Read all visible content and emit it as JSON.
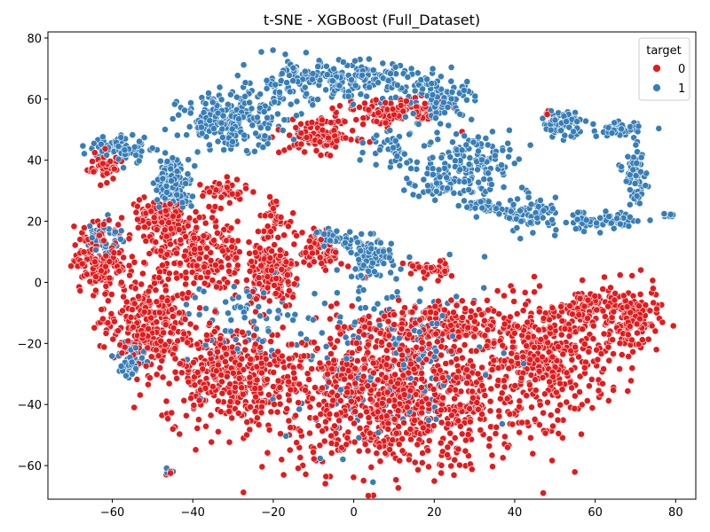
{
  "chart_data": {
    "type": "scatter",
    "title": "t-SNE - XGBoost (Full_Dataset)",
    "xlabel": "",
    "ylabel": "",
    "xlim": [
      -76,
      85
    ],
    "ylim": [
      -71,
      82
    ],
    "x_ticks": [
      -60,
      -40,
      -20,
      0,
      20,
      40,
      60,
      80
    ],
    "y_ticks": [
      -60,
      -40,
      -20,
      0,
      20,
      40,
      60,
      80
    ],
    "grid": false,
    "legend": {
      "title": "target",
      "placement": "top-right",
      "entries": [
        {
          "label": "0",
          "color": "#e41a1c"
        },
        {
          "label": "1",
          "color": "#377eb8"
        }
      ]
    },
    "series": [
      {
        "name": "0",
        "color": "#e41a1c",
        "clusters": [
          {
            "cx": 10,
            "cy": -38,
            "rx": 30,
            "ry": 22,
            "n": 900
          },
          {
            "cx": 48,
            "cy": -25,
            "rx": 14,
            "ry": 18,
            "n": 380
          },
          {
            "cx": 68,
            "cy": -12,
            "rx": 7,
            "ry": 10,
            "n": 160
          },
          {
            "cx": 57,
            "cy": -8,
            "rx": 6,
            "ry": 5,
            "n": 70
          },
          {
            "cx": 20,
            "cy": -14,
            "rx": 18,
            "ry": 7,
            "n": 220
          },
          {
            "cx": -30,
            "cy": -30,
            "rx": 16,
            "ry": 15,
            "n": 350
          },
          {
            "cx": -52,
            "cy": -14,
            "rx": 10,
            "ry": 14,
            "n": 260
          },
          {
            "cx": -63,
            "cy": 8,
            "rx": 6,
            "ry": 10,
            "n": 150
          },
          {
            "cx": -40,
            "cy": 10,
            "rx": 12,
            "ry": 14,
            "n": 260
          },
          {
            "cx": -20,
            "cy": 2,
            "rx": 6,
            "ry": 9,
            "n": 160
          },
          {
            "cx": -48,
            "cy": 22,
            "rx": 7,
            "ry": 5,
            "n": 100
          },
          {
            "cx": -20,
            "cy": 21,
            "rx": 3,
            "ry": 5,
            "n": 40
          },
          {
            "cx": -8,
            "cy": 48,
            "rx": 8,
            "ry": 5,
            "n": 120
          },
          {
            "cx": 10,
            "cy": 56,
            "rx": 12,
            "ry": 4,
            "n": 110
          },
          {
            "cx": -8,
            "cy": 10,
            "rx": 5,
            "ry": 6,
            "n": 70
          },
          {
            "cx": -62,
            "cy": 38,
            "rx": 4,
            "ry": 4,
            "n": 60
          },
          {
            "cx": -32,
            "cy": 30,
            "rx": 5,
            "ry": 3,
            "n": 50
          },
          {
            "cx": 18,
            "cy": 4,
            "rx": 5,
            "ry": 3,
            "n": 40
          },
          {
            "cx": -45,
            "cy": -62,
            "rx": 1.5,
            "ry": 1,
            "n": 3
          },
          {
            "cx": 48,
            "cy": 56,
            "rx": 1,
            "ry": 1,
            "n": 3
          }
        ]
      },
      {
        "name": "1",
        "color": "#377eb8",
        "clusters": [
          {
            "cx": -30,
            "cy": 53,
            "rx": 12,
            "ry": 8,
            "n": 220
          },
          {
            "cx": -45,
            "cy": 32,
            "rx": 4,
            "ry": 8,
            "n": 150
          },
          {
            "cx": -58,
            "cy": 44,
            "rx": 7,
            "ry": 4,
            "n": 80
          },
          {
            "cx": -5,
            "cy": 66,
            "rx": 22,
            "ry": 6,
            "n": 250
          },
          {
            "cx": 22,
            "cy": 60,
            "rx": 7,
            "ry": 6,
            "n": 100
          },
          {
            "cx": 30,
            "cy": 40,
            "rx": 12,
            "ry": 10,
            "n": 130
          },
          {
            "cx": 22,
            "cy": 32,
            "rx": 8,
            "ry": 4,
            "n": 60
          },
          {
            "cx": 32,
            "cy": 25,
            "rx": 4,
            "ry": 2,
            "n": 40
          },
          {
            "cx": 44,
            "cy": 22,
            "rx": 6,
            "ry": 5,
            "n": 80
          },
          {
            "cx": 52,
            "cy": 52,
            "rx": 5,
            "ry": 4,
            "n": 70
          },
          {
            "cx": 66,
            "cy": 50,
            "rx": 5,
            "ry": 2,
            "n": 50
          },
          {
            "cx": 70,
            "cy": 35,
            "rx": 2.5,
            "ry": 8,
            "n": 70
          },
          {
            "cx": 62,
            "cy": 20,
            "rx": 10,
            "ry": 3,
            "n": 70
          },
          {
            "cx": 78,
            "cy": 22,
            "rx": 2,
            "ry": 1,
            "n": 10
          },
          {
            "cx": 4,
            "cy": 8,
            "rx": 5,
            "ry": 6,
            "n": 90
          },
          {
            "cx": -5,
            "cy": 14,
            "rx": 5,
            "ry": 3,
            "n": 50
          },
          {
            "cx": -55,
            "cy": -25,
            "rx": 3,
            "ry": 6,
            "n": 50
          },
          {
            "cx": -62,
            "cy": 15,
            "rx": 4,
            "ry": 5,
            "n": 50
          },
          {
            "cx": -46,
            "cy": -62,
            "rx": 1.5,
            "ry": 1.5,
            "n": 6
          },
          {
            "cx": 10,
            "cy": -25,
            "rx": 28,
            "ry": 25,
            "n": 180
          },
          {
            "cx": -30,
            "cy": -12,
            "rx": 15,
            "ry": 12,
            "n": 70
          },
          {
            "cx": 10,
            "cy": 45,
            "rx": 6,
            "ry": 7,
            "n": 40
          }
        ]
      }
    ]
  }
}
